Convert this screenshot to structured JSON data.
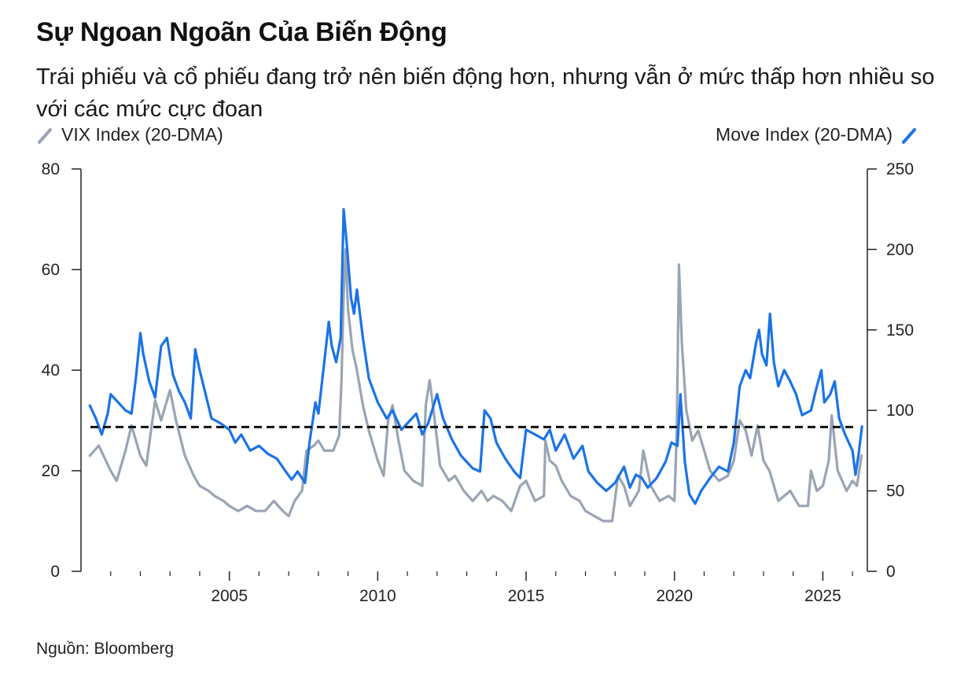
{
  "title": "Sự Ngoan Ngoãn Của Biến Động",
  "subtitle": "Trái phiếu và cổ phiếu đang trở nên biến động hơn, nhưng vẫn ở mức thấp hơn nhiều so với các mức cực đoan",
  "source": "Nguồn: Bloomberg",
  "colors": {
    "vix": "#9aa4b3",
    "move": "#1a73e8",
    "reference": "#111111",
    "axis": "#222222"
  },
  "chart_data": {
    "type": "line",
    "title": "Sự Ngoan Ngoãn Của Biến Động",
    "x_range": [
      2000.0,
      2026.5
    ],
    "x_ticks": [
      2005,
      2010,
      2015,
      2020,
      2025
    ],
    "x_tick_labels": [
      "2005",
      "2010",
      "2015",
      "2020",
      "2025"
    ],
    "x_minor_ticks": [
      2001,
      2002,
      2003,
      2004,
      2006,
      2007,
      2008,
      2009,
      2011,
      2012,
      2013,
      2014,
      2016,
      2017,
      2018,
      2019,
      2021,
      2022,
      2023,
      2024,
      2026
    ],
    "y_left": {
      "label": "VIX Index (20-DMA)",
      "range": [
        0,
        80
      ],
      "ticks": [
        0,
        20,
        40,
        60,
        80
      ],
      "tick_labels": [
        "0",
        "20",
        "40",
        "60",
        "80"
      ]
    },
    "y_right": {
      "label": "Move Index (20-DMA)",
      "range": [
        0,
        250
      ],
      "ticks": [
        0,
        50,
        100,
        150,
        200,
        250
      ],
      "tick_labels": [
        "0",
        "50",
        "100",
        "150",
        "200",
        "250"
      ]
    },
    "reference_line": {
      "axis": "left",
      "value": 28.7,
      "style": "dashed"
    },
    "series": [
      {
        "name": "VIX Index (20-DMA)",
        "axis": "left",
        "color": "#9aa4b3",
        "points": [
          [
            2000.3,
            23
          ],
          [
            2000.6,
            25
          ],
          [
            2001.0,
            20
          ],
          [
            2001.2,
            18
          ],
          [
            2001.5,
            24
          ],
          [
            2001.7,
            29
          ],
          [
            2002.0,
            23
          ],
          [
            2002.2,
            21
          ],
          [
            2002.5,
            34
          ],
          [
            2002.7,
            30
          ],
          [
            2003.0,
            36
          ],
          [
            2003.2,
            30
          ],
          [
            2003.5,
            23
          ],
          [
            2003.8,
            19
          ],
          [
            2004.0,
            17
          ],
          [
            2004.3,
            16
          ],
          [
            2004.5,
            15
          ],
          [
            2004.8,
            14
          ],
          [
            2005.0,
            13
          ],
          [
            2005.3,
            12
          ],
          [
            2005.6,
            13
          ],
          [
            2005.9,
            12
          ],
          [
            2006.2,
            12
          ],
          [
            2006.5,
            14
          ],
          [
            2006.8,
            12
          ],
          [
            2007.0,
            11
          ],
          [
            2007.2,
            14
          ],
          [
            2007.45,
            16
          ],
          [
            2007.6,
            24
          ],
          [
            2007.85,
            25
          ],
          [
            2008.0,
            26
          ],
          [
            2008.2,
            24
          ],
          [
            2008.5,
            24
          ],
          [
            2008.7,
            27
          ],
          [
            2008.78,
            38
          ],
          [
            2008.85,
            55
          ],
          [
            2008.92,
            64
          ],
          [
            2009.0,
            52
          ],
          [
            2009.15,
            44
          ],
          [
            2009.3,
            40
          ],
          [
            2009.5,
            33
          ],
          [
            2009.7,
            28
          ],
          [
            2010.0,
            22
          ],
          [
            2010.2,
            19
          ],
          [
            2010.35,
            30
          ],
          [
            2010.5,
            33
          ],
          [
            2010.7,
            26
          ],
          [
            2010.9,
            20
          ],
          [
            2011.2,
            18
          ],
          [
            2011.5,
            17
          ],
          [
            2011.62,
            33
          ],
          [
            2011.75,
            38
          ],
          [
            2011.9,
            31
          ],
          [
            2012.1,
            21
          ],
          [
            2012.4,
            18
          ],
          [
            2012.6,
            19
          ],
          [
            2012.9,
            16
          ],
          [
            2013.2,
            14
          ],
          [
            2013.5,
            16
          ],
          [
            2013.7,
            14
          ],
          [
            2013.9,
            15
          ],
          [
            2014.2,
            14
          ],
          [
            2014.5,
            12
          ],
          [
            2014.8,
            17
          ],
          [
            2015.0,
            18
          ],
          [
            2015.3,
            14
          ],
          [
            2015.6,
            15
          ],
          [
            2015.65,
            26
          ],
          [
            2015.8,
            22
          ],
          [
            2016.0,
            21
          ],
          [
            2016.2,
            18
          ],
          [
            2016.5,
            15
          ],
          [
            2016.8,
            14
          ],
          [
            2017.0,
            12
          ],
          [
            2017.3,
            11
          ],
          [
            2017.6,
            10
          ],
          [
            2017.9,
            10
          ],
          [
            2018.1,
            19
          ],
          [
            2018.3,
            17
          ],
          [
            2018.5,
            13
          ],
          [
            2018.8,
            16
          ],
          [
            2018.95,
            24
          ],
          [
            2019.2,
            17
          ],
          [
            2019.5,
            14
          ],
          [
            2019.8,
            15
          ],
          [
            2020.0,
            14
          ],
          [
            2020.08,
            28
          ],
          [
            2020.15,
            61
          ],
          [
            2020.25,
            45
          ],
          [
            2020.4,
            32
          ],
          [
            2020.6,
            26
          ],
          [
            2020.8,
            28
          ],
          [
            2021.0,
            24
          ],
          [
            2021.2,
            20
          ],
          [
            2021.5,
            18
          ],
          [
            2021.8,
            19
          ],
          [
            2022.0,
            22
          ],
          [
            2022.2,
            30
          ],
          [
            2022.4,
            28
          ],
          [
            2022.6,
            23
          ],
          [
            2022.8,
            29
          ],
          [
            2023.0,
            22
          ],
          [
            2023.2,
            20
          ],
          [
            2023.5,
            14
          ],
          [
            2023.7,
            15
          ],
          [
            2023.9,
            16
          ],
          [
            2024.2,
            13
          ],
          [
            2024.5,
            13
          ],
          [
            2024.6,
            20
          ],
          [
            2024.8,
            16
          ],
          [
            2025.0,
            17
          ],
          [
            2025.2,
            22
          ],
          [
            2025.3,
            31
          ],
          [
            2025.5,
            20
          ],
          [
            2025.8,
            16
          ],
          [
            2026.0,
            18
          ],
          [
            2026.15,
            17
          ],
          [
            2026.3,
            23
          ]
        ]
      },
      {
        "name": "Move Index (20-DMA)",
        "axis": "right",
        "color": "#1a73e8",
        "points": [
          [
            2000.3,
            103
          ],
          [
            2000.5,
            95
          ],
          [
            2000.7,
            85
          ],
          [
            2000.9,
            98
          ],
          [
            2001.0,
            110
          ],
          [
            2001.2,
            106
          ],
          [
            2001.5,
            100
          ],
          [
            2001.7,
            98
          ],
          [
            2001.85,
            120
          ],
          [
            2002.0,
            148
          ],
          [
            2002.1,
            135
          ],
          [
            2002.3,
            118
          ],
          [
            2002.5,
            108
          ],
          [
            2002.7,
            140
          ],
          [
            2002.9,
            145
          ],
          [
            2003.1,
            122
          ],
          [
            2003.3,
            112
          ],
          [
            2003.5,
            105
          ],
          [
            2003.7,
            95
          ],
          [
            2003.85,
            138
          ],
          [
            2004.0,
            125
          ],
          [
            2004.2,
            110
          ],
          [
            2004.4,
            95
          ],
          [
            2004.7,
            92
          ],
          [
            2005.0,
            88
          ],
          [
            2005.2,
            80
          ],
          [
            2005.4,
            85
          ],
          [
            2005.7,
            75
          ],
          [
            2006.0,
            78
          ],
          [
            2006.3,
            73
          ],
          [
            2006.6,
            70
          ],
          [
            2006.9,
            62
          ],
          [
            2007.1,
            57
          ],
          [
            2007.3,
            62
          ],
          [
            2007.55,
            55
          ],
          [
            2007.7,
            80
          ],
          [
            2007.9,
            105
          ],
          [
            2008.0,
            98
          ],
          [
            2008.2,
            130
          ],
          [
            2008.35,
            155
          ],
          [
            2008.45,
            140
          ],
          [
            2008.6,
            130
          ],
          [
            2008.75,
            145
          ],
          [
            2008.85,
            225
          ],
          [
            2008.95,
            205
          ],
          [
            2009.1,
            170
          ],
          [
            2009.2,
            160
          ],
          [
            2009.3,
            175
          ],
          [
            2009.5,
            145
          ],
          [
            2009.7,
            120
          ],
          [
            2010.0,
            105
          ],
          [
            2010.3,
            95
          ],
          [
            2010.5,
            100
          ],
          [
            2010.8,
            88
          ],
          [
            2011.0,
            92
          ],
          [
            2011.3,
            98
          ],
          [
            2011.5,
            85
          ],
          [
            2011.7,
            92
          ],
          [
            2012.0,
            110
          ],
          [
            2012.2,
            95
          ],
          [
            2012.5,
            82
          ],
          [
            2012.8,
            72
          ],
          [
            2013.2,
            64
          ],
          [
            2013.45,
            62
          ],
          [
            2013.6,
            100
          ],
          [
            2013.8,
            95
          ],
          [
            2014.0,
            80
          ],
          [
            2014.3,
            70
          ],
          [
            2014.6,
            62
          ],
          [
            2014.8,
            58
          ],
          [
            2015.0,
            88
          ],
          [
            2015.3,
            85
          ],
          [
            2015.6,
            82
          ],
          [
            2015.8,
            88
          ],
          [
            2016.0,
            75
          ],
          [
            2016.3,
            85
          ],
          [
            2016.6,
            70
          ],
          [
            2016.9,
            78
          ],
          [
            2017.1,
            62
          ],
          [
            2017.4,
            55
          ],
          [
            2017.7,
            50
          ],
          [
            2018.0,
            55
          ],
          [
            2018.3,
            65
          ],
          [
            2018.5,
            52
          ],
          [
            2018.7,
            60
          ],
          [
            2018.9,
            58
          ],
          [
            2019.1,
            52
          ],
          [
            2019.4,
            58
          ],
          [
            2019.7,
            68
          ],
          [
            2019.9,
            80
          ],
          [
            2020.1,
            78
          ],
          [
            2020.2,
            110
          ],
          [
            2020.35,
            68
          ],
          [
            2020.5,
            48
          ],
          [
            2020.7,
            42
          ],
          [
            2020.9,
            50
          ],
          [
            2021.2,
            58
          ],
          [
            2021.5,
            65
          ],
          [
            2021.8,
            62
          ],
          [
            2022.0,
            80
          ],
          [
            2022.2,
            115
          ],
          [
            2022.4,
            125
          ],
          [
            2022.55,
            120
          ],
          [
            2022.75,
            142
          ],
          [
            2022.85,
            150
          ],
          [
            2022.95,
            135
          ],
          [
            2023.1,
            128
          ],
          [
            2023.22,
            160
          ],
          [
            2023.35,
            130
          ],
          [
            2023.5,
            115
          ],
          [
            2023.7,
            125
          ],
          [
            2023.9,
            118
          ],
          [
            2024.1,
            110
          ],
          [
            2024.3,
            97
          ],
          [
            2024.6,
            100
          ],
          [
            2024.8,
            115
          ],
          [
            2024.95,
            125
          ],
          [
            2025.05,
            105
          ],
          [
            2025.25,
            110
          ],
          [
            2025.4,
            118
          ],
          [
            2025.55,
            95
          ],
          [
            2025.75,
            85
          ],
          [
            2026.0,
            75
          ],
          [
            2026.1,
            60
          ],
          [
            2026.2,
            72
          ],
          [
            2026.32,
            90
          ]
        ]
      }
    ]
  }
}
